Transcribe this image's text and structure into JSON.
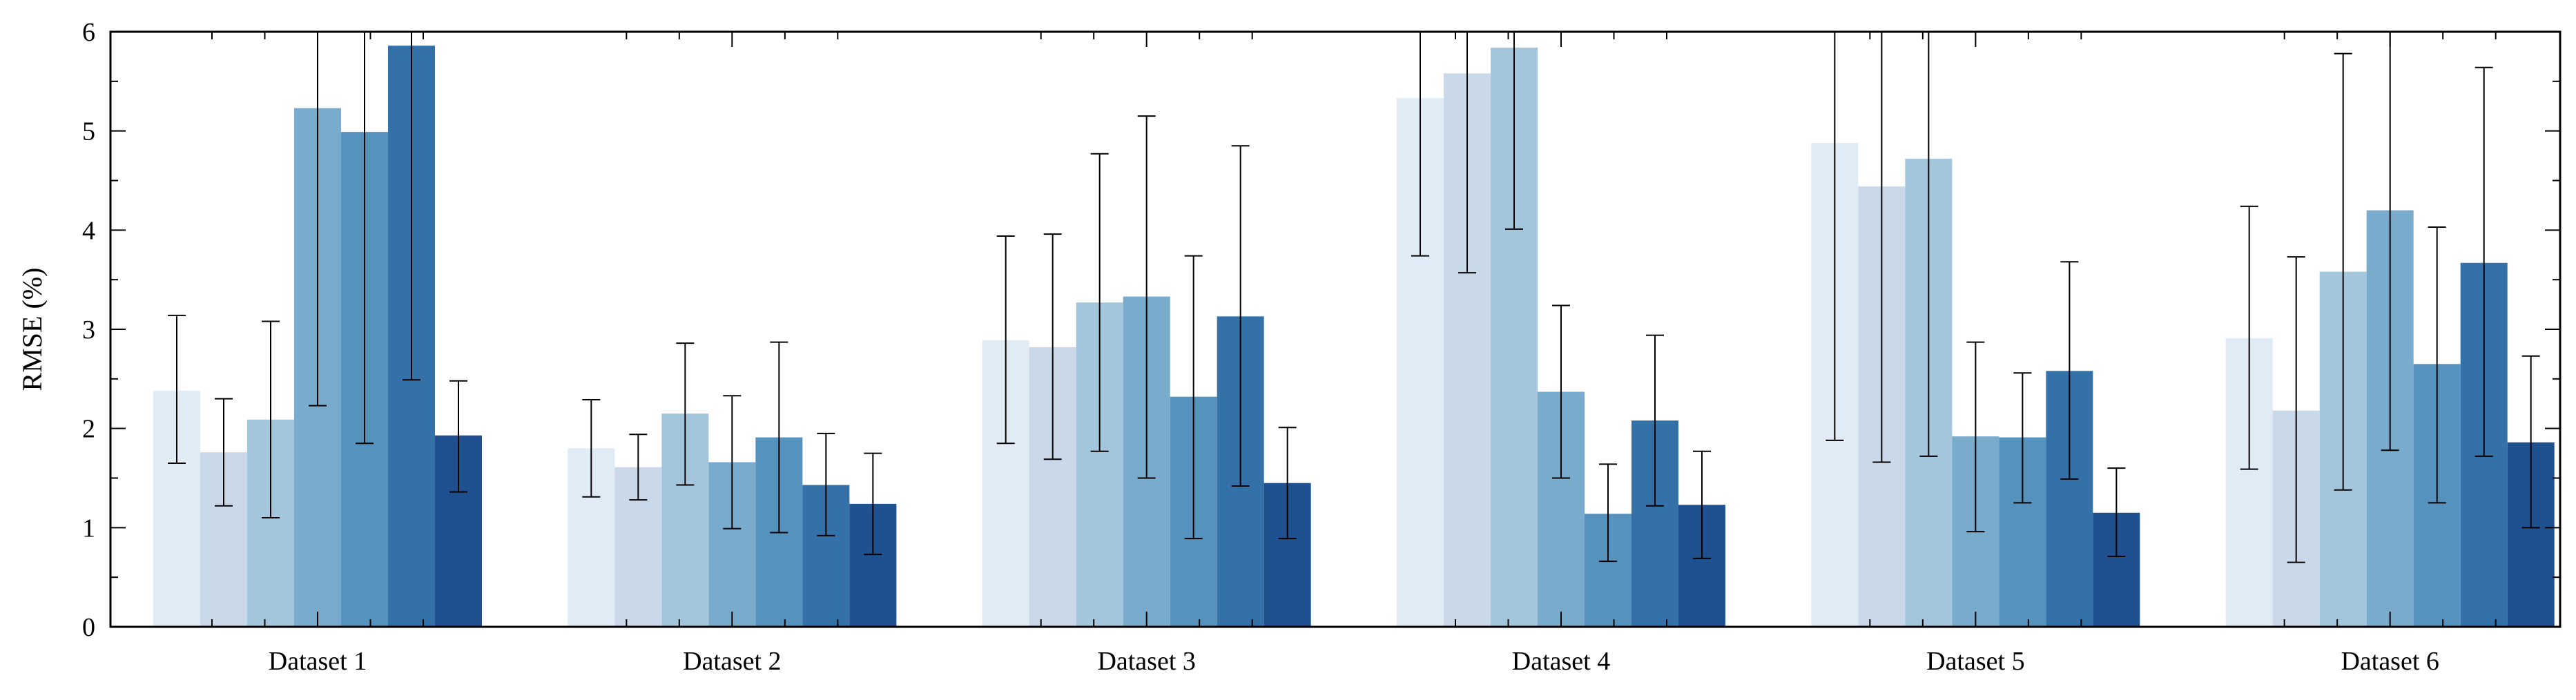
{
  "chart_data": {
    "type": "bar",
    "ylabel": "RMSE (%)",
    "ylim": [
      0,
      6
    ],
    "yticks": [
      0,
      1,
      2,
      3,
      4,
      5,
      6
    ],
    "categories": [
      "Dataset 1",
      "Dataset 2",
      "Dataset 3",
      "Dataset 4",
      "Dataset 5",
      "Dataset 6"
    ],
    "legend": "none",
    "grid": false,
    "series": [
      {
        "color": "#e1ebf5",
        "values": [
          2.38,
          1.8,
          2.89,
          5.33,
          4.88,
          2.91
        ],
        "err_low": [
          1.65,
          1.31,
          1.85,
          3.74,
          1.88,
          1.59
        ],
        "err_high": [
          3.14,
          2.29,
          3.94,
          6.0,
          6.0,
          4.24
        ]
      },
      {
        "color": "#cad9ea",
        "values": [
          1.76,
          1.61,
          2.82,
          5.58,
          4.44,
          2.18
        ],
        "err_low": [
          1.22,
          1.28,
          1.69,
          3.57,
          1.66,
          0.65
        ],
        "err_high": [
          2.3,
          1.94,
          3.96,
          6.0,
          6.0,
          3.73
        ]
      },
      {
        "color": "#a4c6dc",
        "values": [
          2.09,
          2.15,
          3.27,
          5.84,
          4.72,
          3.58
        ],
        "err_low": [
          1.1,
          1.43,
          1.77,
          4.01,
          1.72,
          1.38
        ],
        "err_high": [
          3.08,
          2.86,
          4.77,
          6.0,
          6.0,
          5.78
        ]
      },
      {
        "color": "#79abcd",
        "values": [
          5.23,
          1.66,
          3.33,
          2.37,
          1.92,
          4.2
        ],
        "err_low": [
          2.23,
          0.99,
          1.5,
          1.5,
          0.96,
          1.78
        ],
        "err_high": [
          6.0,
          2.33,
          5.15,
          3.24,
          2.87,
          6.0
        ]
      },
      {
        "color": "#5692be",
        "values": [
          4.99,
          1.91,
          2.32,
          1.14,
          1.91,
          2.65
        ],
        "err_low": [
          1.85,
          0.95,
          0.89,
          0.66,
          1.25,
          1.25
        ],
        "err_high": [
          6.0,
          2.87,
          3.74,
          1.64,
          2.56,
          4.03
        ]
      },
      {
        "color": "#3471a9",
        "values": [
          5.86,
          1.43,
          3.13,
          2.08,
          2.58,
          3.67
        ],
        "err_low": [
          2.49,
          0.92,
          1.42,
          1.22,
          1.49,
          1.72
        ],
        "err_high": [
          6.0,
          1.95,
          4.85,
          2.94,
          3.68,
          5.64
        ]
      },
      {
        "color": "#1f5190",
        "values": [
          1.93,
          1.24,
          1.45,
          1.23,
          1.15,
          1.86
        ],
        "err_low": [
          1.36,
          0.73,
          0.89,
          0.69,
          0.71,
          1.0
        ],
        "err_high": [
          2.48,
          1.75,
          2.01,
          1.77,
          1.6,
          2.73
        ]
      }
    ]
  }
}
